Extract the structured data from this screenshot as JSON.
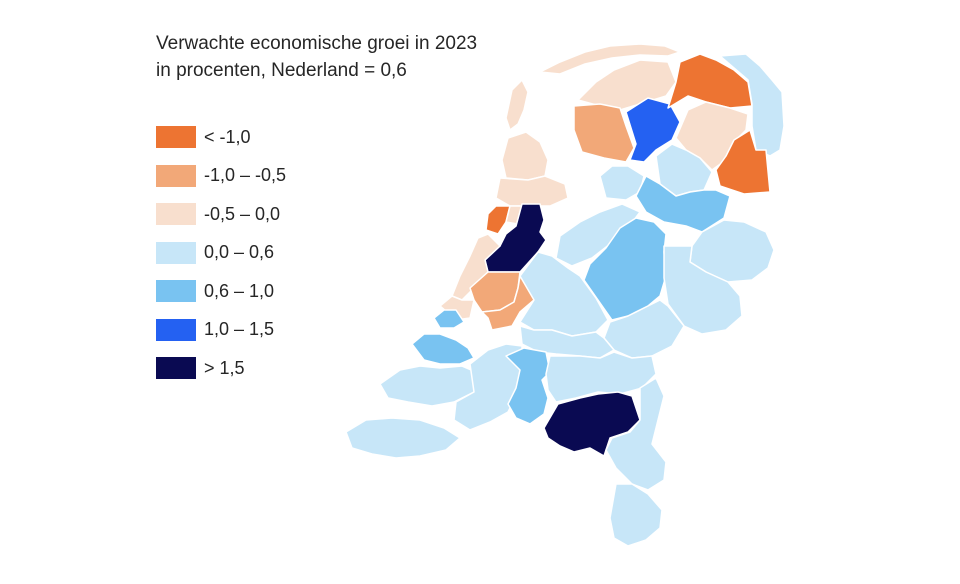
{
  "title": {
    "line1": "Verwachte economische groei in 2023",
    "line2": "in procenten, Nederland = 0,6"
  },
  "legend": [
    {
      "label": "< -1,0",
      "color": "#ed7432"
    },
    {
      "label": "-1,0 – -0,5",
      "color": "#f2a878"
    },
    {
      "label": "-0,5 – 0,0",
      "color": "#f8dfce"
    },
    {
      "label": "0,0 – 0,6",
      "color": "#c7e6f8"
    },
    {
      "label": "0,6 – 1,0",
      "color": "#79c3f1"
    },
    {
      "label": "1,0 – 1,5",
      "color": "#2461f2"
    },
    {
      "label": "> 1,5",
      "color": "#0a0a52"
    }
  ],
  "map_regions": [
    {
      "name": "texel",
      "cls": 2
    },
    {
      "name": "kop-noord-holland",
      "cls": 2
    },
    {
      "name": "alkmaar-region",
      "cls": 2
    },
    {
      "name": "ijmond",
      "cls": 0
    },
    {
      "name": "zaanstreek",
      "cls": 2
    },
    {
      "name": "groot-amsterdam",
      "cls": 6
    },
    {
      "name": "het-gooi",
      "cls": 2
    },
    {
      "name": "haarlem-region",
      "cls": 2
    },
    {
      "name": "leiden-region",
      "cls": 1
    },
    {
      "name": "den-haag-region",
      "cls": 2
    },
    {
      "name": "delft-westland",
      "cls": 4
    },
    {
      "name": "rotterdam-region",
      "cls": 1
    },
    {
      "name": "utrecht",
      "cls": 3
    },
    {
      "name": "flevoland-north",
      "cls": 3
    },
    {
      "name": "flevoland-south",
      "cls": 3
    },
    {
      "name": "friesland-northwest",
      "cls": 2
    },
    {
      "name": "friesland-southwest",
      "cls": 1
    },
    {
      "name": "friesland-east",
      "cls": 5
    },
    {
      "name": "groningen-north",
      "cls": 0
    },
    {
      "name": "groningen-east",
      "cls": 3
    },
    {
      "name": "drenthe-north",
      "cls": 2
    },
    {
      "name": "drenthe-southeast",
      "cls": 0
    },
    {
      "name": "noordoostpolder",
      "cls": 3
    },
    {
      "name": "noord-overijssel",
      "cls": 4
    },
    {
      "name": "veluwe",
      "cls": 4
    },
    {
      "name": "twente",
      "cls": 3
    },
    {
      "name": "achterhoek",
      "cls": 3
    },
    {
      "name": "arnhem-nijmegen",
      "cls": 3
    },
    {
      "name": "rivierenland",
      "cls": 3
    },
    {
      "name": "zeeland-north",
      "cls": 4
    },
    {
      "name": "zeeland",
      "cls": 3
    },
    {
      "name": "zeeuws-vlaanderen",
      "cls": 3
    },
    {
      "name": "west-noord-brabant",
      "cls": 3
    },
    {
      "name": "midden-noord-brabant",
      "cls": 4
    },
    {
      "name": "noordoost-noord-brabant",
      "cls": 3
    },
    {
      "name": "zuidoost-noord-brabant",
      "cls": 6
    },
    {
      "name": "noord-limburg",
      "cls": 3
    },
    {
      "name": "zuid-limburg",
      "cls": 3
    },
    {
      "name": "wadden-islands",
      "cls": 2
    }
  ]
}
